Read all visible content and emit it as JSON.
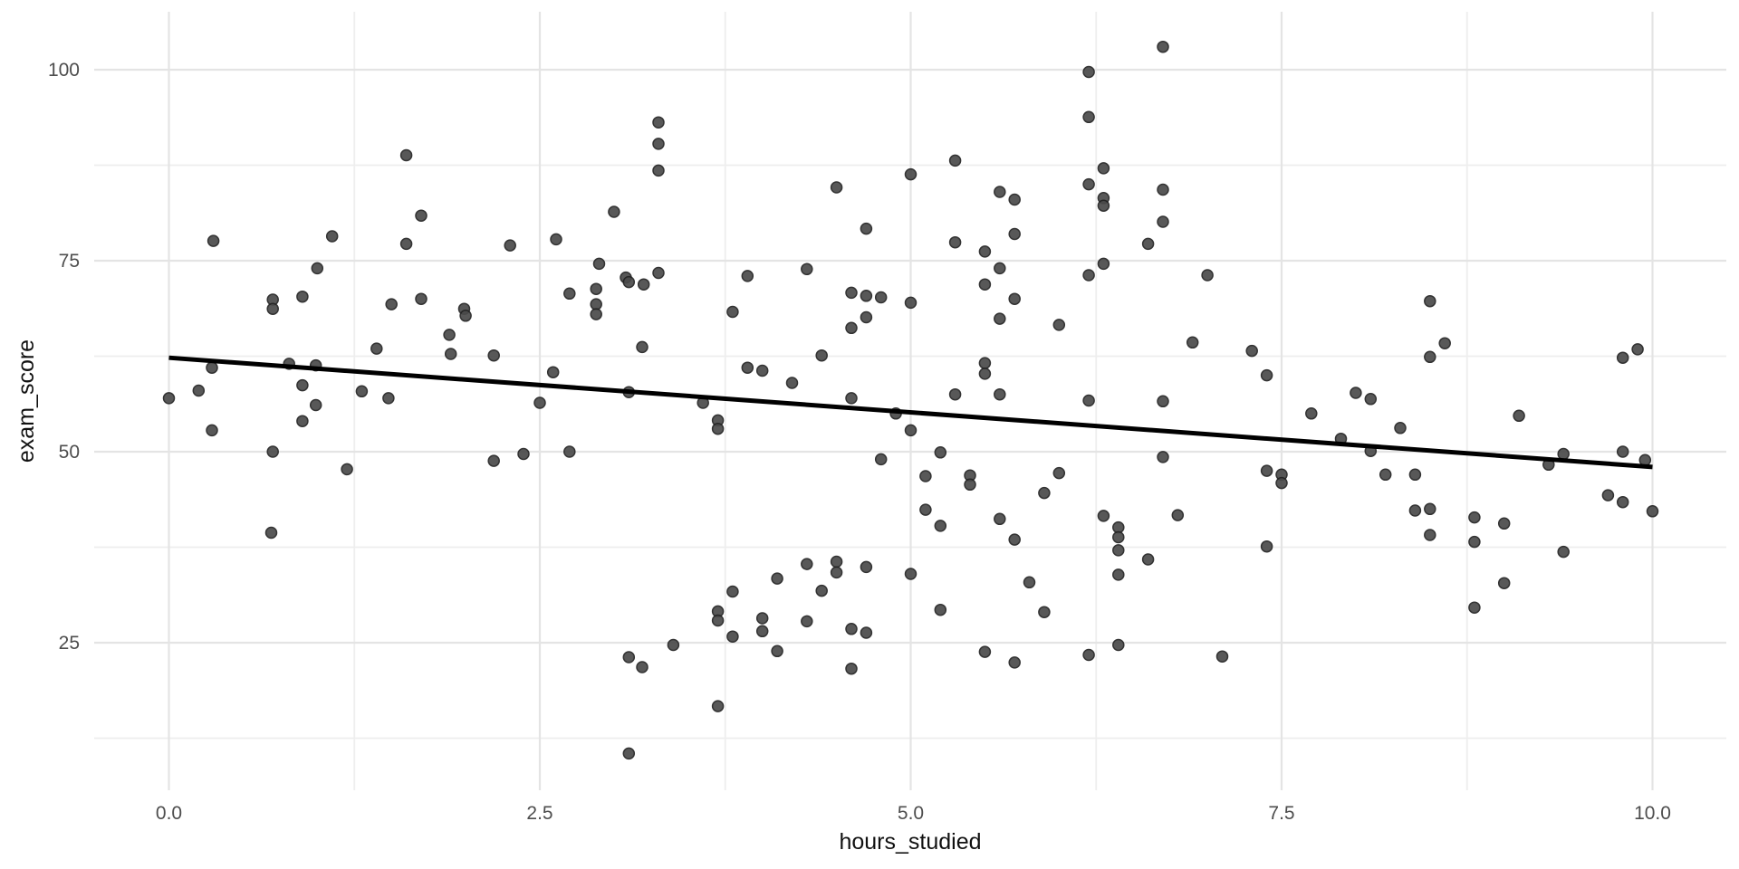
{
  "chart_data": {
    "type": "scatter",
    "title": "",
    "xlabel": "hours_studied",
    "ylabel": "exam_score",
    "x_tick_values": [
      0,
      2.5,
      5,
      7.5,
      10
    ],
    "x_tick_labels": [
      "0.0",
      "2.5",
      "5.0",
      "7.5",
      "10.0"
    ],
    "x_minor_ticks": [
      1.25,
      3.75,
      6.25,
      8.75
    ],
    "y_tick_values": [
      25,
      50,
      75,
      100
    ],
    "y_tick_labels": [
      "25",
      "50",
      "75",
      "100"
    ],
    "y_minor_ticks": [
      12.5,
      37.5,
      62.5,
      87.5
    ],
    "xlim": [
      -0.5,
      10.5
    ],
    "ylim": [
      5.7,
      107.6
    ],
    "grid": "major+minor, no axis lines, white background",
    "legend": "none",
    "trend_line": {
      "type": "linear-fit",
      "x1": 0,
      "y1": 62.3,
      "x2": 10,
      "y2": 48.0,
      "color": "#000000",
      "width": 5
    },
    "point_style": {
      "radius": 6,
      "fill": "#4a4a4a",
      "stroke": "#222222",
      "stroke_width": 1.5,
      "opacity": 0.92
    },
    "colors": {
      "background": "#ffffff",
      "grid_major": "#e4e4e4",
      "grid_minor": "#eeeeee",
      "tick_label": "#4d4d4d",
      "axis_title": "#111111"
    },
    "points": [
      [
        0.0,
        57.0
      ],
      [
        0.2,
        58.0
      ],
      [
        0.29,
        61.0
      ],
      [
        0.3,
        77.6
      ],
      [
        0.29,
        52.8
      ],
      [
        0.69,
        39.4
      ],
      [
        0.7,
        50.0
      ],
      [
        0.7,
        69.9
      ],
      [
        0.7,
        68.7
      ],
      [
        0.81,
        61.5
      ],
      [
        0.9,
        70.3
      ],
      [
        0.9,
        58.7
      ],
      [
        0.9,
        54.0
      ],
      [
        0.99,
        56.1
      ],
      [
        0.99,
        61.3
      ],
      [
        1.0,
        74.0
      ],
      [
        1.1,
        78.2
      ],
      [
        1.2,
        47.7
      ],
      [
        1.3,
        57.9
      ],
      [
        1.4,
        63.5
      ],
      [
        1.48,
        57.0
      ],
      [
        1.5,
        69.3
      ],
      [
        1.6,
        88.8
      ],
      [
        1.6,
        77.2
      ],
      [
        1.7,
        80.9
      ],
      [
        1.7,
        70.0
      ],
      [
        1.89,
        65.3
      ],
      [
        1.9,
        62.8
      ],
      [
        1.99,
        68.7
      ],
      [
        2.0,
        67.8
      ],
      [
        2.19,
        62.6
      ],
      [
        2.19,
        48.8
      ],
      [
        2.3,
        77.0
      ],
      [
        2.39,
        49.7
      ],
      [
        2.5,
        56.4
      ],
      [
        2.59,
        60.4
      ],
      [
        2.61,
        77.8
      ],
      [
        2.7,
        50.0
      ],
      [
        2.7,
        70.7
      ],
      [
        2.9,
        74.6
      ],
      [
        2.88,
        71.3
      ],
      [
        2.88,
        69.3
      ],
      [
        2.88,
        68.0
      ],
      [
        3.0,
        81.4
      ],
      [
        3.08,
        72.8
      ],
      [
        3.1,
        72.2
      ],
      [
        3.2,
        71.9
      ],
      [
        3.1,
        57.8
      ],
      [
        3.19,
        63.7
      ],
      [
        3.1,
        23.1
      ],
      [
        3.19,
        21.8
      ],
      [
        3.1,
        10.5
      ],
      [
        3.3,
        93.1
      ],
      [
        3.3,
        90.3
      ],
      [
        3.3,
        86.8
      ],
      [
        3.3,
        73.4
      ],
      [
        3.4,
        24.7
      ],
      [
        3.6,
        56.4
      ],
      [
        3.7,
        54.1
      ],
      [
        3.7,
        53.0
      ],
      [
        3.7,
        29.1
      ],
      [
        3.7,
        27.9
      ],
      [
        3.7,
        16.7
      ],
      [
        3.8,
        68.3
      ],
      [
        3.8,
        31.7
      ],
      [
        3.8,
        25.8
      ],
      [
        3.9,
        73.0
      ],
      [
        3.9,
        61.0
      ],
      [
        4.0,
        60.6
      ],
      [
        4.0,
        28.2
      ],
      [
        4.0,
        26.5
      ],
      [
        4.1,
        23.9
      ],
      [
        4.1,
        33.4
      ],
      [
        4.2,
        59.0
      ],
      [
        4.3,
        73.9
      ],
      [
        4.3,
        35.3
      ],
      [
        4.3,
        27.8
      ],
      [
        4.4,
        62.6
      ],
      [
        4.4,
        31.8
      ],
      [
        4.5,
        84.6
      ],
      [
        4.5,
        35.6
      ],
      [
        4.5,
        34.2
      ],
      [
        4.6,
        70.8
      ],
      [
        4.6,
        66.2
      ],
      [
        4.6,
        57.0
      ],
      [
        4.6,
        26.8
      ],
      [
        4.6,
        21.6
      ],
      [
        4.7,
        79.2
      ],
      [
        4.7,
        70.4
      ],
      [
        4.7,
        67.6
      ],
      [
        4.7,
        34.9
      ],
      [
        4.7,
        26.3
      ],
      [
        4.8,
        70.2
      ],
      [
        4.8,
        49.0
      ],
      [
        4.9,
        55.0
      ],
      [
        5.0,
        86.3
      ],
      [
        5.0,
        69.5
      ],
      [
        5.0,
        52.8
      ],
      [
        5.0,
        34.0
      ],
      [
        5.1,
        46.8
      ],
      [
        5.1,
        42.4
      ],
      [
        5.2,
        49.9
      ],
      [
        5.2,
        40.3
      ],
      [
        5.2,
        29.3
      ],
      [
        5.3,
        88.1
      ],
      [
        5.3,
        77.4
      ],
      [
        5.3,
        57.5
      ],
      [
        5.4,
        46.9
      ],
      [
        5.4,
        45.7
      ],
      [
        5.5,
        76.2
      ],
      [
        5.5,
        71.9
      ],
      [
        5.5,
        61.6
      ],
      [
        5.5,
        60.2
      ],
      [
        5.5,
        23.8
      ],
      [
        5.6,
        84.0
      ],
      [
        5.6,
        74.0
      ],
      [
        5.6,
        67.4
      ],
      [
        5.6,
        57.5
      ],
      [
        5.6,
        41.2
      ],
      [
        5.7,
        83.0
      ],
      [
        5.7,
        78.5
      ],
      [
        5.7,
        70.0
      ],
      [
        5.7,
        38.5
      ],
      [
        5.7,
        22.4
      ],
      [
        5.8,
        32.9
      ],
      [
        5.9,
        44.6
      ],
      [
        5.9,
        29.0
      ],
      [
        6.0,
        66.6
      ],
      [
        6.0,
        47.2
      ],
      [
        6.2,
        99.7
      ],
      [
        6.2,
        93.8
      ],
      [
        6.2,
        85.0
      ],
      [
        6.2,
        73.1
      ],
      [
        6.2,
        56.7
      ],
      [
        6.2,
        23.4
      ],
      [
        6.3,
        87.1
      ],
      [
        6.3,
        83.2
      ],
      [
        6.3,
        82.2
      ],
      [
        6.3,
        74.6
      ],
      [
        6.3,
        41.6
      ],
      [
        6.4,
        40.1
      ],
      [
        6.4,
        38.8
      ],
      [
        6.4,
        37.1
      ],
      [
        6.4,
        33.9
      ],
      [
        6.4,
        24.7
      ],
      [
        6.6,
        77.2
      ],
      [
        6.6,
        35.9
      ],
      [
        6.7,
        103.0
      ],
      [
        6.7,
        84.3
      ],
      [
        6.7,
        80.1
      ],
      [
        6.7,
        56.6
      ],
      [
        6.7,
        49.3
      ],
      [
        6.8,
        41.7
      ],
      [
        6.9,
        64.3
      ],
      [
        7.0,
        73.1
      ],
      [
        7.1,
        23.2
      ],
      [
        7.3,
        63.2
      ],
      [
        7.4,
        60.0
      ],
      [
        7.4,
        47.5
      ],
      [
        7.4,
        37.6
      ],
      [
        7.5,
        47.0
      ],
      [
        7.5,
        45.9
      ],
      [
        7.7,
        55.0
      ],
      [
        7.9,
        51.7
      ],
      [
        8.0,
        57.7
      ],
      [
        8.1,
        56.9
      ],
      [
        8.1,
        50.1
      ],
      [
        8.2,
        47.0
      ],
      [
        8.3,
        53.1
      ],
      [
        8.4,
        47.0
      ],
      [
        8.4,
        42.3
      ],
      [
        8.5,
        69.7
      ],
      [
        8.5,
        62.4
      ],
      [
        8.5,
        42.5
      ],
      [
        8.5,
        39.1
      ],
      [
        8.6,
        64.2
      ],
      [
        8.8,
        41.4
      ],
      [
        8.8,
        38.2
      ],
      [
        8.8,
        29.6
      ],
      [
        9.0,
        40.6
      ],
      [
        9.0,
        32.8
      ],
      [
        9.1,
        54.7
      ],
      [
        9.3,
        48.3
      ],
      [
        9.4,
        49.7
      ],
      [
        9.4,
        36.9
      ],
      [
        9.7,
        44.3
      ],
      [
        9.8,
        62.3
      ],
      [
        9.8,
        50.0
      ],
      [
        9.8,
        43.4
      ],
      [
        9.9,
        63.4
      ],
      [
        9.95,
        48.9
      ],
      [
        10.0,
        42.2
      ]
    ]
  }
}
